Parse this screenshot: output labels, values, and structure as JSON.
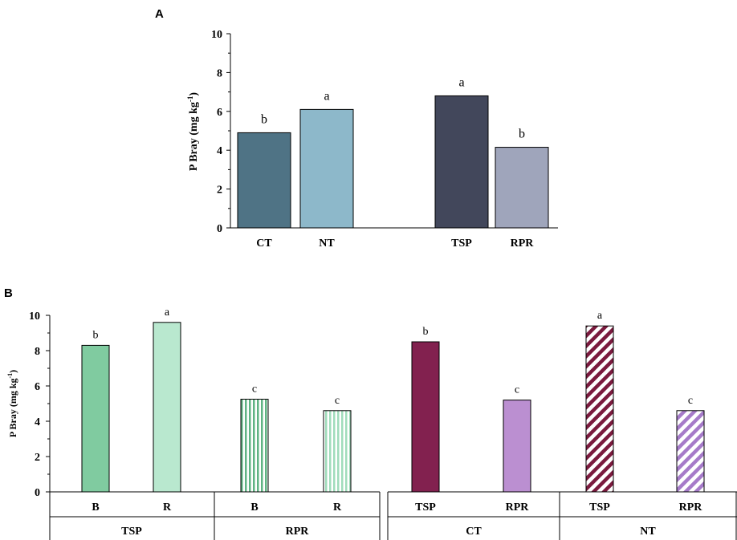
{
  "chart_data": [
    {
      "panel": "A",
      "type": "bar",
      "ylabel": "P Bray (mg kg",
      "ylabel_sup": "-1",
      "ylabel_close": ")",
      "ylim": [
        0,
        10
      ],
      "yticks": [
        "0",
        "2",
        "4",
        "6",
        "8",
        "10"
      ],
      "categories": [
        "CT",
        "NT",
        "TSP",
        "RPR"
      ],
      "values": [
        4.9,
        6.1,
        6.8,
        4.15
      ],
      "letters": [
        "b",
        "a",
        "a",
        "b"
      ],
      "colors": [
        "#4f7385",
        "#8db8ca",
        "#42475b",
        "#9fa5bb"
      ]
    },
    {
      "panel": "B",
      "type": "bar",
      "ylabel": "P Bray (mg kg",
      "ylabel_sup": "-1",
      "ylabel_close": ")",
      "ylim": [
        0,
        10
      ],
      "yticks": [
        "0",
        "2",
        "4",
        "6",
        "8",
        "10"
      ],
      "categories": [
        "B",
        "R",
        "B",
        "R",
        "TSP",
        "RPR",
        "TSP",
        "RPR"
      ],
      "groups": [
        "TSP",
        "RPR",
        "CT",
        "NT"
      ],
      "values": [
        8.3,
        9.6,
        5.25,
        4.6,
        8.5,
        5.2,
        9.4,
        4.6
      ],
      "letters": [
        "b",
        "a",
        "c",
        "c",
        "b",
        "c",
        "a",
        "c"
      ],
      "colors": [
        "#80cba0",
        "#b9e8cf",
        "#5fb383",
        "#a0dcbb",
        "#82214f",
        "#bb8fd1",
        "#7a1a3e",
        "#a67bc9"
      ],
      "patterns": [
        "solid",
        "solid",
        "vstripe",
        "vstripe",
        "solid",
        "solid",
        "diag",
        "diag"
      ]
    }
  ]
}
